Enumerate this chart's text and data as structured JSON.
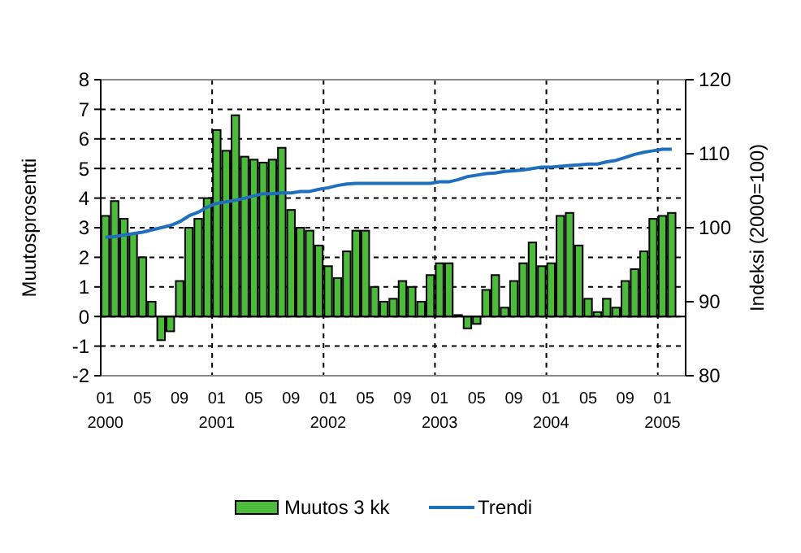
{
  "chart_data": {
    "type": "bar",
    "xlabel": null,
    "ylabel": "Muutosprosentti",
    "y2label": "Indeksi (2000=100)",
    "categories": [
      "01\n2000",
      null,
      null,
      null,
      "05",
      null,
      null,
      null,
      "09",
      null,
      null,
      null,
      "01\n2001",
      null,
      null,
      null,
      "05",
      null,
      null,
      null,
      "09",
      null,
      null,
      null,
      "01\n2002",
      null,
      null,
      null,
      "05",
      null,
      null,
      null,
      "09",
      null,
      null,
      null,
      "01\n2003",
      null,
      null,
      null,
      "05",
      null,
      null,
      null,
      "09",
      null,
      null,
      null,
      "01\n2004",
      null,
      null,
      null,
      "05",
      null,
      null,
      null,
      "09",
      null,
      null,
      null,
      "01\n2005",
      null,
      null
    ],
    "series": [
      {
        "name": "Muutos 3 kk",
        "color": "#4cbb3c",
        "values": [
          3.4,
          3.9,
          3.3,
          2.8,
          2.0,
          0.5,
          -0.8,
          -0.5,
          1.2,
          3.0,
          3.3,
          4.0,
          6.3,
          5.6,
          6.8,
          5.4,
          5.3,
          5.2,
          5.3,
          5.7,
          3.6,
          3.0,
          2.9,
          2.4,
          1.7,
          1.3,
          2.2,
          2.9,
          2.9,
          1.0,
          0.5,
          0.6,
          1.2,
          1.0,
          0.5,
          1.4,
          1.8,
          1.8,
          0.05,
          -0.4,
          -0.25,
          0.9,
          1.4,
          0.3,
          1.2,
          1.8,
          2.5,
          1.7,
          1.8,
          3.4,
          3.5,
          2.4,
          0.6,
          0.15,
          0.6,
          0.3,
          1.2,
          1.6,
          2.2,
          3.3,
          3.4,
          3.5,
          null
        ]
      },
      {
        "name": "Trendi",
        "type": "line",
        "axis": "y2",
        "color": "#1f6fbf",
        "values": [
          98.7,
          98.8,
          99.0,
          99.2,
          99.4,
          99.7,
          100.0,
          100.3,
          100.8,
          101.6,
          102.1,
          102.8,
          103.3,
          103.5,
          103.7,
          104.0,
          104.3,
          104.6,
          104.6,
          104.7,
          104.7,
          104.9,
          104.9,
          105.2,
          105.4,
          105.7,
          105.9,
          106.0,
          106.0,
          106.0,
          106.0,
          106.0,
          106.0,
          106.0,
          106.0,
          106.0,
          106.2,
          106.2,
          106.5,
          106.9,
          107.1,
          107.3,
          107.4,
          107.6,
          107.7,
          107.8,
          108.0,
          108.2,
          108.2,
          108.3,
          108.4,
          108.5,
          108.6,
          108.6,
          108.9,
          109.1,
          109.5,
          109.9,
          110.2,
          110.4,
          110.6,
          110.6,
          null
        ]
      }
    ],
    "ylim": [
      -2,
      8
    ],
    "yticks": [
      -2,
      -1,
      0,
      1,
      2,
      3,
      4,
      5,
      6,
      7,
      8
    ],
    "y2lim": [
      80,
      120
    ],
    "y2ticks": [
      80,
      90,
      100,
      110,
      120
    ],
    "grid": true,
    "legend": "bottom"
  }
}
